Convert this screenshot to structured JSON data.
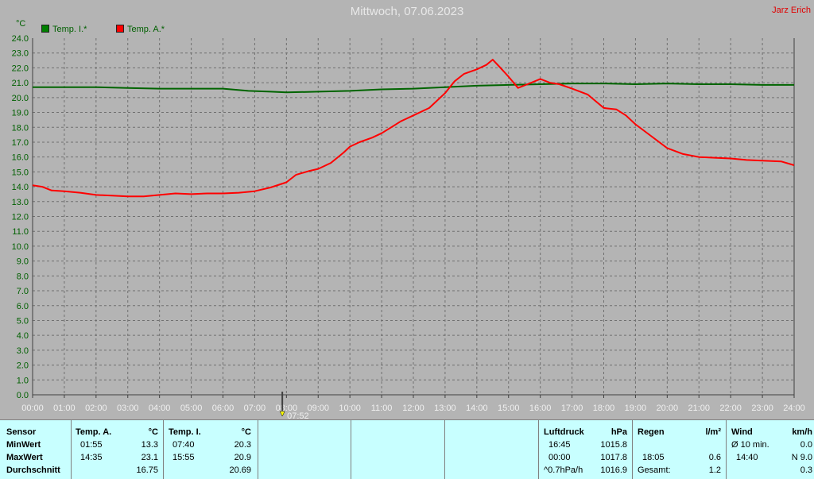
{
  "header": {
    "title": "Mittwoch, 07.06.2023",
    "author": "Jarz Erich",
    "unit_label": "°C"
  },
  "colors": {
    "inner": "#006400",
    "outer": "#ff0000",
    "grid": "#707070",
    "bg": "#b4b4b4"
  },
  "chart_data": {
    "type": "line",
    "title": "Mittwoch, 07.06.2023",
    "ylabel": "°C",
    "ylim": [
      0,
      24
    ],
    "yticks": [
      "0.0",
      "1.0",
      "2.0",
      "3.0",
      "4.0",
      "5.0",
      "6.0",
      "7.0",
      "8.0",
      "9.0",
      "10.0",
      "11.0",
      "12.0",
      "13.0",
      "14.0",
      "15.0",
      "16.0",
      "17.0",
      "18.0",
      "19.0",
      "20.0",
      "21.0",
      "22.0",
      "23.0",
      "24.0"
    ],
    "xticks": [
      "00:00",
      "01:00",
      "02:00",
      "03:00",
      "04:00",
      "05:00",
      "06:00",
      "07:00",
      "08:00",
      "09:00",
      "10:00",
      "11:00",
      "12:00",
      "13:00",
      "14:00",
      "15:00",
      "16:00",
      "17:00",
      "18:00",
      "19:00",
      "20:00",
      "21:00",
      "22:00",
      "23:00",
      "24:00"
    ],
    "marker": {
      "label": "07:52",
      "hour": 7.87
    },
    "grid": true,
    "legend_position": "top-left",
    "series": [
      {
        "name": "Temp. I.*",
        "color": "#006400",
        "points": [
          [
            0,
            20.7
          ],
          [
            1,
            20.7
          ],
          [
            2,
            20.7
          ],
          [
            3,
            20.65
          ],
          [
            4,
            20.6
          ],
          [
            5,
            20.6
          ],
          [
            6,
            20.6
          ],
          [
            6.8,
            20.45
          ],
          [
            7.5,
            20.4
          ],
          [
            8,
            20.35
          ],
          [
            9,
            20.4
          ],
          [
            10,
            20.45
          ],
          [
            11,
            20.55
          ],
          [
            12,
            20.6
          ],
          [
            13,
            20.7
          ],
          [
            14,
            20.8
          ],
          [
            15,
            20.85
          ],
          [
            16,
            20.9
          ],
          [
            17,
            20.95
          ],
          [
            18,
            20.95
          ],
          [
            19,
            20.9
          ],
          [
            20,
            20.95
          ],
          [
            21,
            20.9
          ],
          [
            22,
            20.9
          ],
          [
            23,
            20.85
          ],
          [
            24,
            20.85
          ]
        ]
      },
      {
        "name": "Temp. A.*",
        "color": "#ff0000",
        "points": [
          [
            0,
            14.1
          ],
          [
            0.3,
            14.0
          ],
          [
            0.6,
            13.75
          ],
          [
            1,
            13.7
          ],
          [
            1.5,
            13.6
          ],
          [
            2,
            13.45
          ],
          [
            2.5,
            13.4
          ],
          [
            3,
            13.35
          ],
          [
            3.5,
            13.35
          ],
          [
            4,
            13.45
          ],
          [
            4.5,
            13.55
          ],
          [
            5,
            13.5
          ],
          [
            5.5,
            13.55
          ],
          [
            6,
            13.55
          ],
          [
            6.5,
            13.6
          ],
          [
            7,
            13.7
          ],
          [
            7.5,
            13.95
          ],
          [
            8,
            14.3
          ],
          [
            8.3,
            14.8
          ],
          [
            8.7,
            15.05
          ],
          [
            9,
            15.2
          ],
          [
            9.4,
            15.6
          ],
          [
            9.8,
            16.3
          ],
          [
            10,
            16.7
          ],
          [
            10.3,
            17.0
          ],
          [
            10.7,
            17.3
          ],
          [
            11,
            17.6
          ],
          [
            11.3,
            18.0
          ],
          [
            11.6,
            18.4
          ],
          [
            12,
            18.8
          ],
          [
            12.5,
            19.3
          ],
          [
            13,
            20.3
          ],
          [
            13.3,
            21.1
          ],
          [
            13.6,
            21.6
          ],
          [
            14,
            21.9
          ],
          [
            14.3,
            22.2
          ],
          [
            14.5,
            22.55
          ],
          [
            14.7,
            22.1
          ],
          [
            15,
            21.4
          ],
          [
            15.3,
            20.65
          ],
          [
            15.6,
            20.9
          ],
          [
            16,
            21.25
          ],
          [
            16.3,
            21.0
          ],
          [
            16.6,
            20.9
          ],
          [
            17,
            20.6
          ],
          [
            17.5,
            20.2
          ],
          [
            18,
            19.3
          ],
          [
            18.4,
            19.2
          ],
          [
            18.7,
            18.8
          ],
          [
            19,
            18.2
          ],
          [
            19.5,
            17.4
          ],
          [
            20,
            16.6
          ],
          [
            20.5,
            16.2
          ],
          [
            21,
            16.0
          ],
          [
            21.5,
            15.95
          ],
          [
            22,
            15.9
          ],
          [
            22.5,
            15.8
          ],
          [
            23,
            15.75
          ],
          [
            23.6,
            15.7
          ],
          [
            24,
            15.45
          ]
        ]
      }
    ]
  },
  "table": {
    "sensor": {
      "header": "Sensor",
      "rows": [
        "MinWert",
        "MaxWert",
        "Durchschnitt"
      ]
    },
    "temp_a": {
      "header": "Temp. A.",
      "unit": "°C",
      "min_time": "01:55",
      "min_val": "13.3",
      "max_time": "14:35",
      "max_val": "23.1",
      "avg_val": "16.75"
    },
    "temp_i": {
      "header": "Temp. I.",
      "unit": "°C",
      "min_time": "07:40",
      "min_val": "20.3",
      "max_time": "15:55",
      "max_val": "20.9",
      "avg_val": "20.69"
    },
    "luftdruck": {
      "header": "Luftdruck",
      "unit": "hPa",
      "min_time": "16:45",
      "min_val": "1015.8",
      "max_time": "00:00",
      "max_val": "1017.8",
      "trend_label": "^0.7hPa/h",
      "trend_val": "1016.9"
    },
    "regen": {
      "header": "Regen",
      "unit": "l/m²",
      "max_time": "18:05",
      "max_val": "0.6",
      "total_label": "Gesamt:",
      "total_val": "1.2"
    },
    "wind": {
      "header": "Wind",
      "unit": "km/h",
      "avg_label": "Ø 10 min.",
      "avg_val": "0.0",
      "max_time": "14:40",
      "max_val": "N 9.0",
      "last_val": "0.3"
    }
  }
}
